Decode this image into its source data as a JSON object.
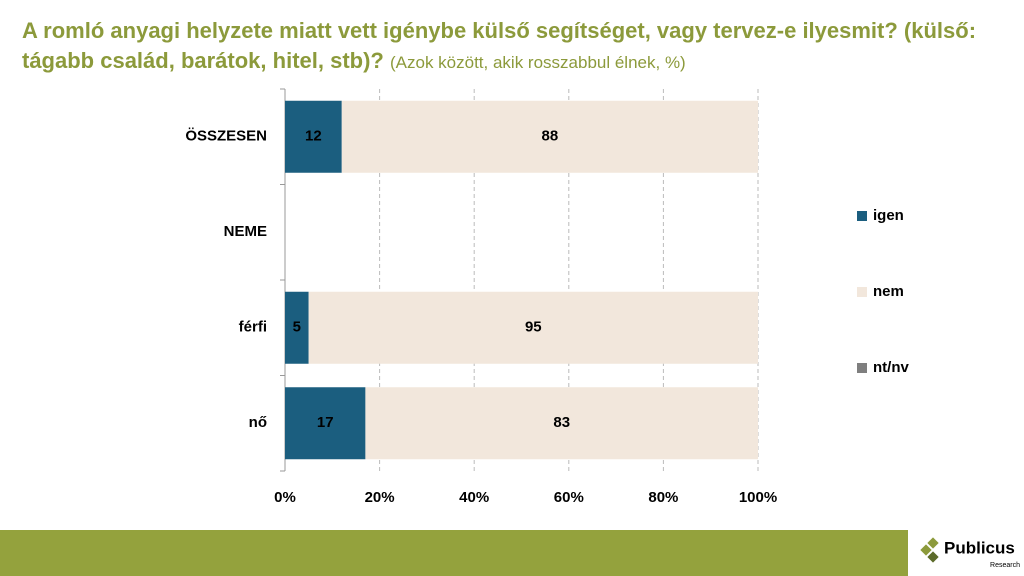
{
  "chart_data": {
    "type": "stacked-barh",
    "title": "A romló anyagi helyzete miatt vett igénybe külső segítséget, vagy tervez-e ilyesmit? (külső: tágabb család, barátok, hitel, stb)?",
    "subtitle": "(Azok között, akik rosszabbul élnek, %)",
    "categories": [
      "ÖSSZESEN",
      "NEME",
      "férfi",
      "nő"
    ],
    "series": [
      {
        "name": "igen",
        "color": "#1b5e7f",
        "values": [
          12,
          null,
          5,
          17
        ]
      },
      {
        "name": "nem",
        "color": "#f2e7dc",
        "values": [
          88,
          null,
          95,
          83
        ]
      },
      {
        "name": "nt/nv",
        "color": "#7f7f7f",
        "values": [
          null,
          null,
          null,
          null
        ]
      }
    ],
    "xlim": [
      0,
      100
    ],
    "xticks": [
      {
        "value": 0,
        "label": "0%"
      },
      {
        "value": 20,
        "label": "20%"
      },
      {
        "value": 40,
        "label": "40%"
      },
      {
        "value": 60,
        "label": "60%"
      },
      {
        "value": 80,
        "label": "80%"
      },
      {
        "value": 100,
        "label": "100%"
      }
    ],
    "grid": true,
    "legend": "right"
  },
  "footer": {
    "logo": "Publicus",
    "logo_sub": "Research"
  }
}
